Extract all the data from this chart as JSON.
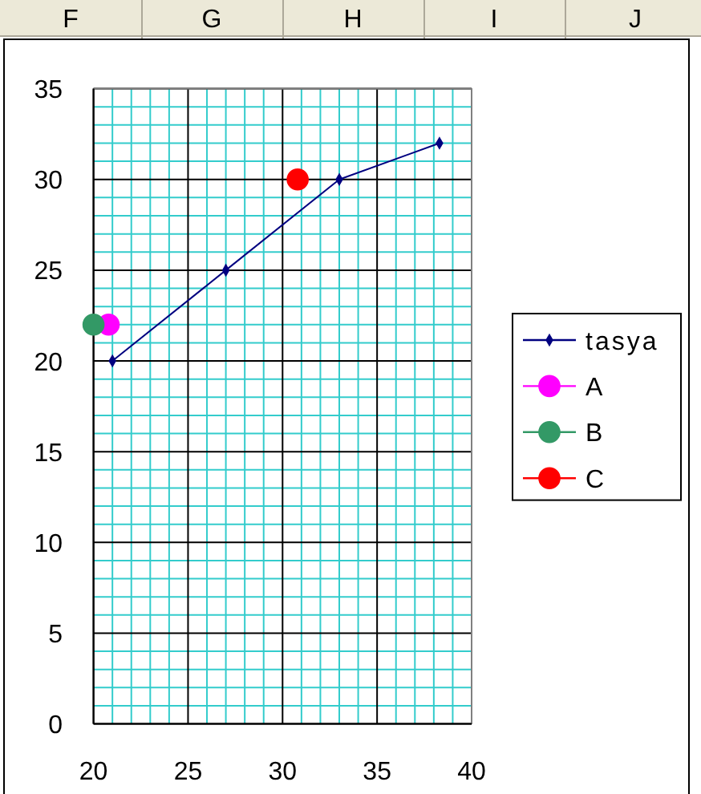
{
  "chart_data": {
    "type": "scatter",
    "xlim": [
      20,
      40
    ],
    "ylim": [
      0,
      35
    ],
    "xticks": [
      20,
      {
        "value": 21,
        "label": null
      },
      {
        "value": 22,
        "label": null
      },
      {
        "value": 23,
        "label": null
      },
      {
        "value": 24,
        "label": null
      },
      25,
      {
        "value": 26,
        "label": null
      },
      {
        "value": 27,
        "label": null
      },
      {
        "value": 28,
        "label": null
      },
      {
        "value": 29,
        "label": null
      },
      30,
      {
        "value": 31,
        "label": null
      },
      {
        "value": 32,
        "label": null
      },
      {
        "value": 33,
        "label": null
      },
      {
        "value": 34,
        "label": null
      },
      35,
      {
        "value": 36,
        "label": null
      },
      {
        "value": 37,
        "label": null
      },
      {
        "value": 38,
        "label": null
      },
      {
        "value": 39,
        "label": null
      },
      40
    ],
    "yticks": [
      0,
      {
        "value": 1,
        "label": null
      },
      {
        "value": 2,
        "label": null
      },
      {
        "value": 3,
        "label": null
      },
      {
        "value": 4,
        "label": null
      },
      5,
      {
        "value": 6,
        "label": null
      },
      {
        "value": 7,
        "label": null
      },
      {
        "value": 8,
        "label": null
      },
      {
        "value": 9,
        "label": null
      },
      10,
      {
        "value": 11,
        "label": null
      },
      {
        "value": 12,
        "label": null
      },
      {
        "value": 13,
        "label": null
      },
      {
        "value": 14,
        "label": null
      },
      15,
      {
        "value": 16,
        "label": null
      },
      {
        "value": 17,
        "label": null
      },
      {
        "value": 18,
        "label": null
      },
      {
        "value": 19,
        "label": null
      },
      20,
      {
        "value": 21,
        "label": null
      },
      {
        "value": 22,
        "label": null
      },
      {
        "value": 23,
        "label": null
      },
      {
        "value": 24,
        "label": null
      },
      25,
      {
        "value": 26,
        "label": null
      },
      {
        "value": 27,
        "label": null
      },
      {
        "value": 28,
        "label": null
      },
      {
        "value": 29,
        "label": null
      },
      30,
      {
        "value": 31,
        "label": null
      },
      {
        "value": 32,
        "label": null
      },
      {
        "value": 33,
        "label": null
      },
      {
        "value": 34,
        "label": null
      },
      35
    ],
    "grid": true,
    "legend": "right",
    "annotations": [
      "F",
      "G",
      "H",
      "I",
      "J"
    ],
    "series": [
      {
        "name": "tasya",
        "type": "line",
        "color": "#000080",
        "marker": "diamond",
        "x": [
          21,
          27,
          33,
          38.3
        ],
        "values": [
          20,
          25,
          30,
          32
        ]
      },
      {
        "name": "A",
        "color": "#ff00ff",
        "marker": "circle",
        "x": [
          20.8
        ],
        "values": [
          22
        ]
      },
      {
        "name": "B",
        "color": "#339966",
        "marker": "circle",
        "x": [
          20
        ],
        "values": [
          22
        ]
      },
      {
        "name": "C",
        "color": "#ff0000",
        "marker": "circle",
        "x": [
          30.8
        ],
        "values": [
          30
        ]
      }
    ]
  }
}
